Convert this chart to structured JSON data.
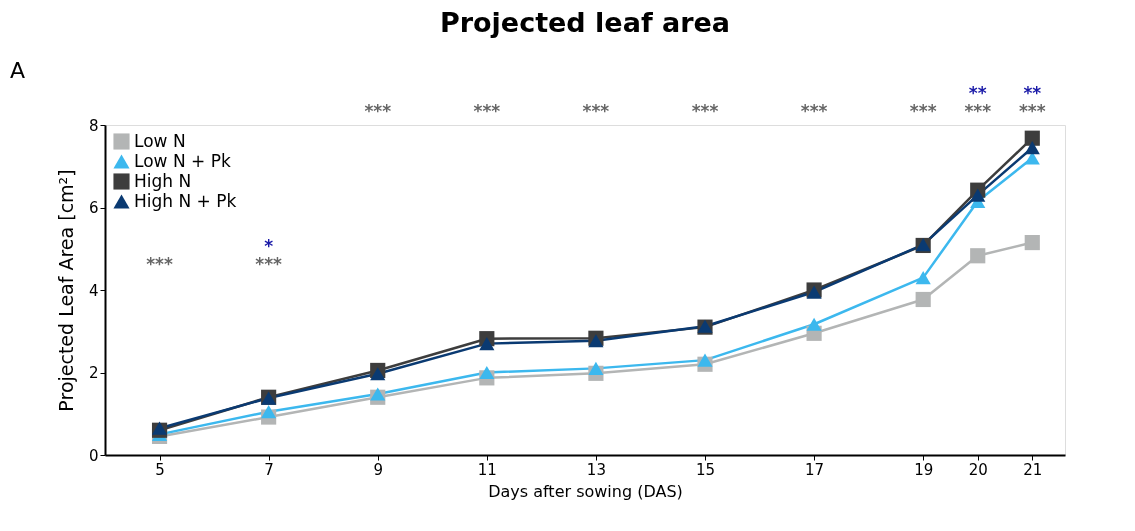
{
  "chart_data": {
    "type": "line",
    "title": "Projected leaf area",
    "xlabel": "Days after sowing (DAS)",
    "ylabel": "Projected Leaf Area [cm²]",
    "x": [
      5,
      7,
      9,
      11,
      13,
      15,
      17,
      19,
      20,
      21
    ],
    "xlim": [
      4,
      21.6
    ],
    "xticks": [
      5,
      7,
      9,
      11,
      13,
      15,
      17,
      19,
      20,
      21
    ],
    "ylim": [
      0,
      8
    ],
    "yticks": [
      0,
      2,
      4,
      6,
      8
    ],
    "grid": false,
    "legend": "top left",
    "line_style": "solid",
    "series": [
      {
        "name": "Low N",
        "color": "#b3b5b5",
        "marker": "square",
        "values": [
          0.45,
          0.92,
          1.4,
          1.87,
          1.98,
          2.2,
          2.95,
          3.77,
          4.83,
          5.15
        ]
      },
      {
        "name": "Low N + Pk",
        "color": "#3cb8ee",
        "marker": "triangle",
        "values": [
          0.5,
          1.05,
          1.48,
          2.0,
          2.1,
          2.3,
          3.17,
          4.3,
          6.15,
          7.2
        ]
      },
      {
        "name": "High N",
        "color": "#3d3d3d",
        "marker": "square",
        "values": [
          0.6,
          1.4,
          2.05,
          2.82,
          2.83,
          3.1,
          4.0,
          5.08,
          6.42,
          7.68
        ]
      },
      {
        "name": "High N + Pk",
        "color": "#0a3a72",
        "marker": "triangle",
        "values": [
          0.65,
          1.38,
          1.97,
          2.7,
          2.77,
          3.12,
          3.95,
          5.1,
          6.3,
          7.45
        ]
      }
    ],
    "annotations": [
      "A",
      "***",
      "***",
      "*",
      "***",
      "***",
      "***",
      "***",
      "***",
      "***",
      "***",
      "**",
      "***",
      "**"
    ]
  }
}
